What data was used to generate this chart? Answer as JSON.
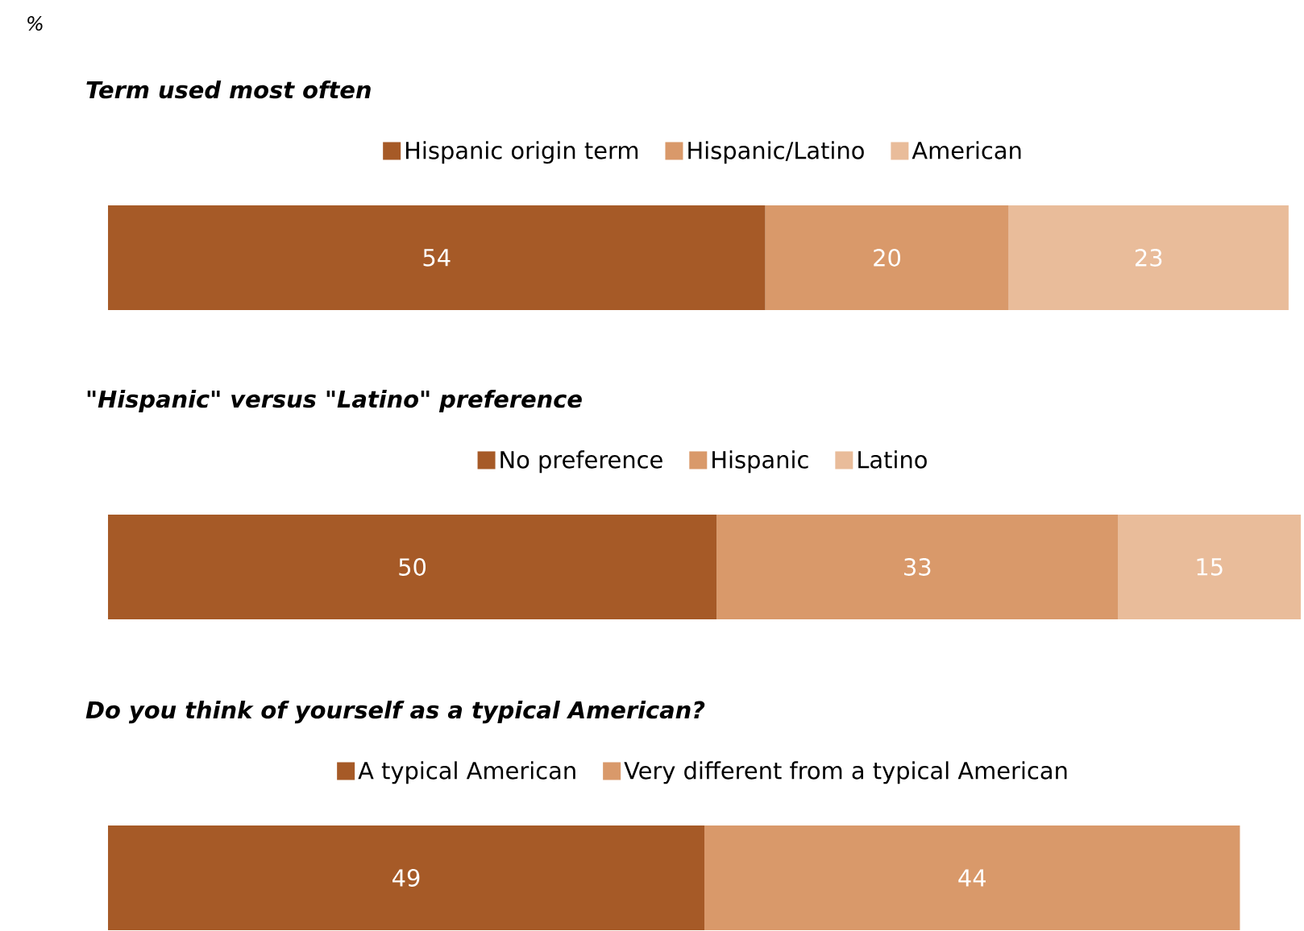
{
  "chart_data": [
    {
      "type": "bar",
      "orientation": "horizontal",
      "stacked": true,
      "title": "Term used most often",
      "annotations": [
        "%"
      ],
      "categories": [
        null
      ],
      "data_labels": true,
      "legend": "top",
      "series": [
        {
          "name": "Hispanic origin term",
          "color": "#a65a27",
          "values": [
            54
          ]
        },
        {
          "name": "Hispanic/Latino",
          "color": "#d9996a",
          "values": [
            20
          ]
        },
        {
          "name": "American",
          "color": "#e9bc9a",
          "values": [
            23
          ]
        }
      ]
    },
    {
      "type": "bar",
      "orientation": "horizontal",
      "stacked": true,
      "title": "\"Hispanic\" versus \"Latino\" preference",
      "categories": [
        null
      ],
      "data_labels": true,
      "legend": "top",
      "series": [
        {
          "name": "No preference",
          "color": "#a65a27",
          "values": [
            50
          ]
        },
        {
          "name": "Hispanic",
          "color": "#d9996a",
          "values": [
            33
          ]
        },
        {
          "name": "Latino",
          "color": "#e9bc9a",
          "values": [
            15
          ]
        }
      ]
    },
    {
      "type": "bar",
      "orientation": "horizontal",
      "stacked": true,
      "title": "Do you think of yourself as a typical American?",
      "categories": [
        null
      ],
      "data_labels": true,
      "legend": "top",
      "series": [
        {
          "name": "A typical American",
          "color": "#a65a27",
          "values": [
            49
          ]
        },
        {
          "name": "Very different from a typical American",
          "color": "#d9996a",
          "values": [
            44
          ]
        }
      ]
    }
  ]
}
